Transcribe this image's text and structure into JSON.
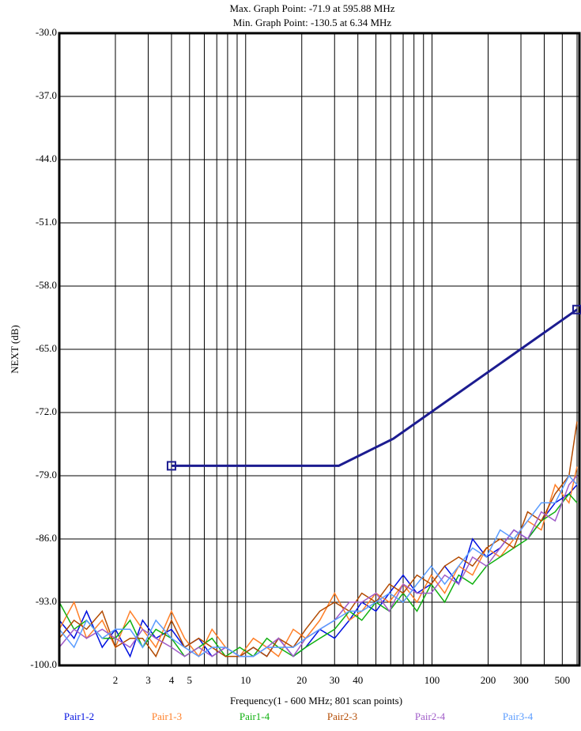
{
  "chart_data": {
    "type": "line",
    "title": "Max. Graph Point: -71.9 at 595.88 MHz",
    "subtitle": "Min. Graph Point: -130.5 at 6.34 MHz",
    "y_label": "NEXT (dB)",
    "x_label": "Frequency(1 - 600 MHz; 801 scan points)",
    "log_x": true,
    "grid": true,
    "xlim": [
      1,
      600
    ],
    "ylim": [
      -100,
      -30
    ],
    "xticks": [
      2,
      3,
      4,
      5,
      10,
      20,
      30,
      40,
      100,
      200,
      300,
      500
    ],
    "xminor_ticks": [
      6,
      7,
      8,
      9,
      50,
      60,
      70,
      80,
      90,
      400,
      600
    ],
    "yticks": [
      {
        "value": -100,
        "label": "-100.0"
      },
      {
        "value": -93,
        "label": "-93.0"
      },
      {
        "value": -86,
        "label": "-86.0"
      },
      {
        "value": -79,
        "label": "-79.0"
      },
      {
        "value": -72,
        "label": "-72.0"
      },
      {
        "value": -65,
        "label": "-65.0"
      },
      {
        "value": -58,
        "label": "-58.0"
      },
      {
        "value": -51,
        "label": "-51.0"
      },
      {
        "value": -44,
        "label": "-44.0"
      },
      {
        "value": -37,
        "label": "-37.0"
      },
      {
        "value": -30,
        "label": "-30.0"
      }
    ],
    "x": [
      1,
      1.2,
      1.4,
      1.7,
      2,
      2.4,
      2.8,
      3.3,
      4,
      4.7,
      5.6,
      6.6,
      7.8,
      9.3,
      11,
      13,
      15,
      18,
      21,
      25,
      30,
      36,
      42,
      50,
      59,
      70,
      83,
      99,
      117,
      139,
      165,
      196,
      232,
      275,
      326,
      386,
      458,
      543,
      600
    ],
    "series": [
      {
        "name": "Pair1-2",
        "color": "#0010e0",
        "values": [
          -95,
          -97,
          -94,
          -98,
          -96,
          -99,
          -95,
          -97,
          -96,
          -98,
          -97,
          -99,
          -98,
          -99,
          -98,
          -99,
          -97,
          -99,
          -98,
          -96,
          -97,
          -95,
          -93,
          -94,
          -92,
          -90,
          -92,
          -91,
          -89,
          -91,
          -86,
          -88,
          -87,
          -85,
          -86,
          -84,
          -82,
          -81,
          -80
        ]
      },
      {
        "name": "Pair1-3",
        "color": "#ff7f27",
        "values": [
          -96,
          -93,
          -97,
          -95,
          -98,
          -94,
          -96,
          -98,
          -94,
          -97,
          -99,
          -96,
          -98,
          -99,
          -97,
          -98,
          -99,
          -96,
          -97,
          -95,
          -92,
          -95,
          -94,
          -92,
          -93,
          -91,
          -93,
          -90,
          -92,
          -89,
          -90,
          -87,
          -88,
          -86,
          -84,
          -85,
          -80,
          -82,
          -78
        ]
      },
      {
        "name": "Pair1-4",
        "color": "#10b010",
        "values": [
          -93,
          -96,
          -95,
          -97,
          -97,
          -95,
          -98,
          -96,
          -97,
          -99,
          -98,
          -97,
          -99,
          -98,
          -99,
          -97,
          -98,
          -99,
          -98,
          -97,
          -96,
          -94,
          -95,
          -93,
          -94,
          -92,
          -94,
          -91,
          -93,
          -90,
          -91,
          -89,
          -88,
          -87,
          -86,
          -84,
          -83,
          -81,
          -82
        ]
      },
      {
        "name": "Pair2-3",
        "color": "#b34a00",
        "values": [
          -97,
          -95,
          -96,
          -94,
          -98,
          -97,
          -97,
          -99,
          -95,
          -98,
          -97,
          -98,
          -99,
          -99,
          -98,
          -99,
          -97,
          -98,
          -96,
          -94,
          -93,
          -94,
          -92,
          -93,
          -91,
          -92,
          -90,
          -91,
          -89,
          -88,
          -89,
          -87,
          -86,
          -87,
          -83,
          -84,
          -81,
          -79,
          -73
        ]
      },
      {
        "name": "Pair2-4",
        "color": "#a05cc8",
        "values": [
          -98,
          -96,
          -97,
          -96,
          -97,
          -98,
          -96,
          -97,
          -98,
          -99,
          -98,
          -99,
          -98,
          -99,
          -99,
          -98,
          -97,
          -99,
          -97,
          -96,
          -95,
          -93,
          -93,
          -92,
          -94,
          -91,
          -92,
          -92,
          -90,
          -91,
          -88,
          -89,
          -87,
          -85,
          -86,
          -83,
          -84,
          -80,
          -79
        ]
      },
      {
        "name": "Pair3-4",
        "color": "#5a9cff",
        "values": [
          -96,
          -98,
          -95,
          -97,
          -96,
          -96,
          -98,
          -95,
          -97,
          -98,
          -99,
          -98,
          -98,
          -99,
          -99,
          -98,
          -98,
          -98,
          -97,
          -96,
          -95,
          -94,
          -94,
          -93,
          -92,
          -93,
          -91,
          -89,
          -91,
          -89,
          -87,
          -88,
          -85,
          -86,
          -84,
          -82,
          -82,
          -79,
          -80
        ]
      }
    ],
    "limit_line": {
      "color": "#1c1c90",
      "x": [
        4,
        31.6,
        62,
        600
      ],
      "values": [
        -77.9,
        -77.9,
        -74.9,
        -60.6
      ]
    }
  }
}
